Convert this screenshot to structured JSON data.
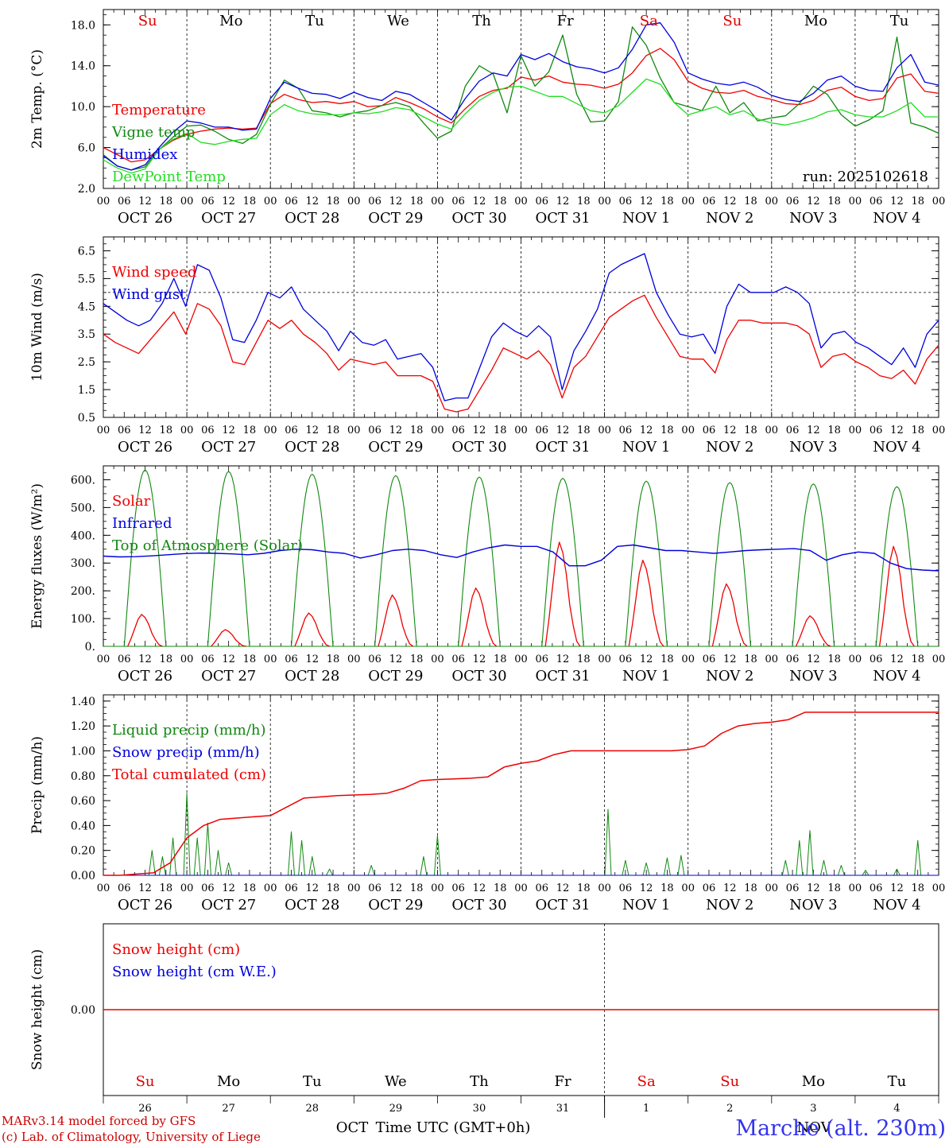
{
  "chart_data": {
    "type": "line",
    "run_label": "run: 2025102618",
    "station_label": "Marche (alt. 230m)",
    "credits": [
      "MARv3.14 model forced by GFS",
      "(c) Lab. of Climatology, University of Liege"
    ],
    "xlabel": "Time UTC (GMT+0h)",
    "hour_ticks": [
      "00",
      "06",
      "12",
      "18"
    ],
    "dates": [
      "OCT 26",
      "OCT 27",
      "OCT 28",
      "OCT 29",
      "OCT 30",
      "OCT 31",
      "NOV  1",
      "NOV  2",
      "NOV  3",
      "NOV  4"
    ],
    "weekdays": [
      "Su",
      "Mo",
      "Tu",
      "We",
      "Th",
      "Fr",
      "Sa",
      "Su",
      "Mo",
      "Tu"
    ],
    "weekday_colors": [
      "#dd0000",
      "#000000",
      "#000000",
      "#000000",
      "#000000",
      "#000000",
      "#dd0000",
      "#dd0000",
      "#000000",
      "#000000"
    ],
    "bottom_day_numbers": [
      "26",
      "27",
      "28",
      "29",
      "30",
      "31",
      "1",
      "2",
      "3",
      "4"
    ],
    "bottom_month_labels": [
      "OCT",
      "NOV"
    ],
    "panels": [
      {
        "id": "temp",
        "ylabel": "2m Temp. (°C)",
        "ylim": [
          2.0,
          19.5
        ],
        "yticks": [
          "2.0",
          "6.0",
          "10.0",
          "14.0",
          "18.0"
        ],
        "ytick_values": [
          2,
          6,
          10,
          14,
          18
        ],
        "series": [
          {
            "name": "Temperature",
            "color": "#ee0000",
            "values": [
              6.0,
              5.3,
              4.6,
              4.8,
              5.8,
              6.7,
              7.3,
              7.6,
              7.8,
              7.9,
              7.8,
              7.9,
              10.3,
              11.2,
              10.7,
              10.4,
              10.5,
              10.3,
              10.5,
              10.0,
              10.1,
              10.9,
              10.4,
              9.8,
              9.0,
              8.4,
              9.8,
              11.0,
              11.6,
              11.8,
              12.9,
              12.6,
              13.0,
              12.4,
              12.2,
              12.1,
              11.8,
              12.2,
              13.3,
              15.0,
              15.7,
              14.6,
              12.5,
              11.8,
              11.4,
              11.3,
              11.6,
              11.0,
              10.7,
              10.3,
              10.2,
              10.6,
              11.6,
              11.9,
              11.0,
              10.6,
              10.8,
              12.8,
              13.2,
              11.5,
              11.3
            ]
          },
          {
            "name": "Vigne temp",
            "color": "#118811",
            "values": [
              5.3,
              4.2,
              3.8,
              4.1,
              5.8,
              7.0,
              8.1,
              8.2,
              7.6,
              6.8,
              6.4,
              7.3,
              10.2,
              12.6,
              11.8,
              9.6,
              9.4,
              9.0,
              9.4,
              9.6,
              10.1,
              10.4,
              10.0,
              8.4,
              6.9,
              7.6,
              12.0,
              14.0,
              13.2,
              9.4,
              15.0,
              12.0,
              13.4,
              17.0,
              11.2,
              8.5,
              8.6,
              10.5,
              17.8,
              16.0,
              12.8,
              10.4,
              10.0,
              9.6,
              12.0,
              9.4,
              10.4,
              8.6,
              8.9,
              9.1,
              10.3,
              12.0,
              11.2,
              9.2,
              8.1,
              8.7,
              9.6,
              16.8,
              8.4,
              8.0,
              7.4
            ]
          },
          {
            "name": "Humidex",
            "color": "#0000dd",
            "values": [
              5.2,
              4.2,
              3.8,
              4.3,
              6.0,
              7.5,
              8.6,
              8.4,
              8.0,
              8.0,
              7.7,
              7.8,
              10.8,
              12.4,
              11.8,
              11.3,
              11.2,
              10.8,
              11.4,
              10.9,
              10.6,
              11.5,
              11.2,
              10.4,
              9.6,
              8.7,
              10.8,
              12.5,
              13.3,
              13.0,
              15.1,
              14.6,
              15.2,
              14.4,
              13.9,
              13.7,
              13.3,
              13.8,
              15.6,
              18.0,
              18.2,
              16.3,
              13.3,
              12.7,
              12.3,
              12.1,
              12.4,
              11.9,
              11.1,
              10.7,
              10.5,
              11.3,
              12.6,
              13.0,
              12.0,
              11.6,
              11.5,
              13.8,
              15.1,
              12.4,
              12.1
            ]
          },
          {
            "name": "DewPoint Temp",
            "color": "#22dd22",
            "values": [
              4.8,
              4.0,
              3.5,
              3.9,
              5.8,
              6.8,
              7.4,
              6.5,
              6.3,
              6.6,
              6.8,
              6.9,
              9.2,
              10.2,
              9.6,
              9.3,
              9.2,
              9.2,
              9.4,
              9.3,
              9.5,
              9.9,
              9.7,
              9.0,
              8.3,
              7.8,
              9.3,
              10.6,
              11.4,
              11.9,
              12.0,
              11.5,
              11.0,
              11.0,
              10.3,
              9.6,
              9.4,
              10.1,
              11.4,
              12.7,
              12.2,
              10.4,
              9.2,
              9.6,
              10.0,
              9.2,
              9.6,
              8.8,
              8.4,
              8.2,
              8.5,
              8.9,
              9.5,
              9.7,
              9.2,
              9.0,
              9.0,
              9.6,
              10.4,
              9.0,
              9.0
            ]
          }
        ]
      },
      {
        "id": "wind",
        "ylabel": "10m Wind (m/s)",
        "ylim": [
          0.5,
          7.0
        ],
        "yticks": [
          "0.5",
          "1.5",
          "2.5",
          "3.5",
          "4.5",
          "5.5",
          "6.5"
        ],
        "ytick_values": [
          0.5,
          1.5,
          2.5,
          3.5,
          4.5,
          5.5,
          6.5
        ],
        "ref_line": 5.0,
        "series": [
          {
            "name": "Wind speed",
            "color": "#ee0000",
            "values": [
              3.5,
              3.2,
              3.0,
              2.8,
              3.3,
              3.8,
              4.3,
              3.5,
              4.6,
              4.4,
              3.8,
              2.5,
              2.4,
              3.2,
              4.0,
              3.7,
              4.0,
              3.5,
              3.2,
              2.8,
              2.2,
              2.6,
              2.5,
              2.4,
              2.5,
              2.0,
              2.0,
              2.0,
              1.8,
              0.8,
              0.7,
              0.8,
              1.5,
              2.2,
              3.0,
              2.8,
              2.6,
              2.9,
              2.4,
              1.2,
              2.3,
              2.7,
              3.4,
              4.1,
              4.4,
              4.7,
              4.9,
              4.1,
              3.4,
              2.7,
              2.6,
              2.6,
              2.1,
              3.3,
              4.0,
              4.0,
              3.9,
              3.9,
              3.9,
              3.8,
              3.5,
              2.3,
              2.7,
              2.8,
              2.5,
              2.3,
              2.0,
              1.9,
              2.2,
              1.7,
              2.6,
              3.1
            ]
          },
          {
            "name": "Wind gust",
            "color": "#0000dd",
            "values": [
              4.6,
              4.3,
              4.0,
              3.8,
              4.0,
              4.6,
              5.5,
              4.5,
              6.0,
              5.8,
              4.8,
              3.3,
              3.2,
              4.0,
              5.0,
              4.8,
              5.2,
              4.4,
              4.0,
              3.6,
              2.9,
              3.6,
              3.2,
              3.1,
              3.3,
              2.6,
              2.7,
              2.8,
              2.3,
              1.1,
              1.2,
              1.2,
              2.3,
              3.4,
              3.9,
              3.6,
              3.4,
              3.8,
              3.4,
              1.5,
              2.9,
              3.6,
              4.4,
              5.7,
              6.0,
              6.2,
              6.4,
              5.0,
              4.2,
              3.5,
              3.4,
              3.5,
              2.8,
              4.5,
              5.3,
              5.0,
              5.0,
              5.0,
              5.2,
              5.0,
              4.6,
              3.0,
              3.5,
              3.6,
              3.2,
              3.0,
              2.7,
              2.4,
              3.0,
              2.3,
              3.5,
              4.0
            ]
          }
        ]
      },
      {
        "id": "energy",
        "ylabel": "Energy fluxes (W/m²)",
        "ylim": [
          0,
          650
        ],
        "yticks": [
          "0.",
          "100.",
          "200.",
          "300.",
          "400.",
          "500.",
          "600."
        ],
        "ytick_values": [
          0,
          100,
          200,
          300,
          400,
          500,
          600
        ],
        "toa_peaks": [
          635,
          630,
          620,
          615,
          610,
          605,
          595,
          590,
          585,
          575
        ],
        "solar_peaks": [
          115,
          60,
          120,
          185,
          210,
          375,
          310,
          225,
          110,
          360
        ],
        "infrared_values": [
          325,
          322,
          323,
          326,
          330,
          334,
          336,
          335,
          333,
          330,
          335,
          345,
          350,
          348,
          340,
          335,
          318,
          330,
          345,
          350,
          345,
          330,
          320,
          340,
          355,
          365,
          360,
          360,
          340,
          290,
          290,
          310,
          360,
          365,
          355,
          345,
          345,
          340,
          335,
          340,
          345,
          348,
          350,
          352,
          345,
          310,
          330,
          340,
          335,
          300,
          280,
          275,
          272
        ],
        "series": [
          {
            "name": "Solar",
            "color": "#ee0000"
          },
          {
            "name": "Infrared",
            "color": "#0000dd"
          },
          {
            "name": "Top of Atmosphere (Solar)",
            "color": "#118811"
          }
        ]
      },
      {
        "id": "precip",
        "ylabel": "Precip (mm/h)",
        "ylim": [
          0,
          1.45
        ],
        "yticks": [
          "0.00",
          "0.20",
          "0.40",
          "0.60",
          "0.80",
          "1.00",
          "1.20",
          "1.40"
        ],
        "ytick_values": [
          0,
          0.2,
          0.4,
          0.6,
          0.8,
          1.0,
          1.2,
          1.4
        ],
        "liquid_events": [
          {
            "t": 14,
            "v": 0.2
          },
          {
            "t": 17,
            "v": 0.15
          },
          {
            "t": 20,
            "v": 0.3
          },
          {
            "t": 24,
            "v": 0.66
          },
          {
            "t": 27,
            "v": 0.3
          },
          {
            "t": 30,
            "v": 0.42
          },
          {
            "t": 33,
            "v": 0.2
          },
          {
            "t": 36,
            "v": 0.1
          },
          {
            "t": 54,
            "v": 0.35
          },
          {
            "t": 57,
            "v": 0.28
          },
          {
            "t": 60,
            "v": 0.15
          },
          {
            "t": 65,
            "v": 0.05
          },
          {
            "t": 77,
            "v": 0.08
          },
          {
            "t": 92,
            "v": 0.15
          },
          {
            "t": 96,
            "v": 0.32
          },
          {
            "t": 145,
            "v": 0.53
          },
          {
            "t": 150,
            "v": 0.12
          },
          {
            "t": 156,
            "v": 0.1
          },
          {
            "t": 162,
            "v": 0.14
          },
          {
            "t": 166,
            "v": 0.16
          },
          {
            "t": 196,
            "v": 0.12
          },
          {
            "t": 200,
            "v": 0.28
          },
          {
            "t": 203,
            "v": 0.36
          },
          {
            "t": 207,
            "v": 0.12
          },
          {
            "t": 212,
            "v": 0.08
          },
          {
            "t": 219,
            "v": 0.04
          },
          {
            "t": 228,
            "v": 0.05
          },
          {
            "t": 234,
            "v": 0.28
          }
        ],
        "cumulative_values": [
          0,
          0,
          0.01,
          0.02,
          0.1,
          0.3,
          0.4,
          0.45,
          0.46,
          0.47,
          0.48,
          0.55,
          0.62,
          0.63,
          0.64,
          0.645,
          0.65,
          0.66,
          0.7,
          0.76,
          0.77,
          0.775,
          0.78,
          0.79,
          0.87,
          0.9,
          0.92,
          0.97,
          1.0,
          1.0,
          1.0,
          1.0,
          1.0,
          1.0,
          1.0,
          1.01,
          1.04,
          1.14,
          1.2,
          1.22,
          1.23,
          1.25,
          1.31,
          1.31,
          1.31,
          1.31,
          1.31,
          1.31,
          1.31,
          1.31,
          1.31
        ],
        "series": [
          {
            "name": "Liquid precip (mm/h)",
            "color": "#118811"
          },
          {
            "name": "Snow precip (mm/h)",
            "color": "#0000dd"
          },
          {
            "name": "Total cumulated (cm)",
            "color": "#ee0000"
          }
        ]
      },
      {
        "id": "snow",
        "ylabel": "Snow height (cm)",
        "ylim": [
          -1,
          1
        ],
        "yticks": [
          "0.00"
        ],
        "ytick_values": [
          0
        ],
        "series": [
          {
            "name": "Snow height (cm)",
            "color": "#ee0000",
            "values": [
              0,
              0
            ]
          },
          {
            "name": "Snow height (cm W.E.)",
            "color": "#0000dd",
            "values": [
              0,
              0
            ]
          }
        ]
      }
    ]
  }
}
